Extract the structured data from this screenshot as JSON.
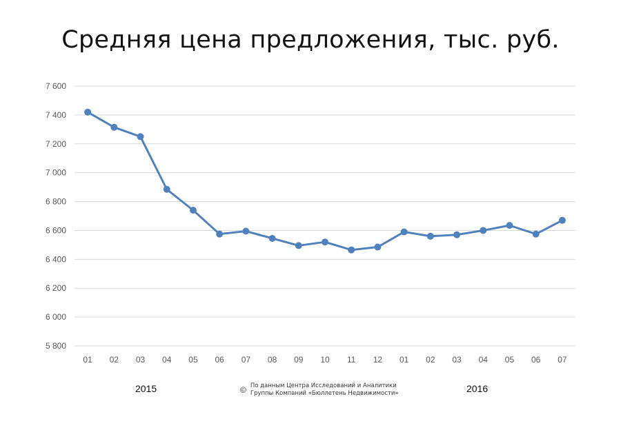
{
  "title": "Средняя цена предложения, тыс. руб.",
  "chart_data": {
    "type": "line",
    "title": "Средняя цена предложения, тыс. руб.",
    "categories": [
      "01",
      "02",
      "03",
      "04",
      "05",
      "06",
      "07",
      "08",
      "09",
      "10",
      "11",
      "12",
      "01",
      "02",
      "03",
      "04",
      "05",
      "06",
      "07"
    ],
    "values": [
      7420,
      7315,
      7250,
      6885,
      6740,
      6575,
      6595,
      6545,
      6495,
      6520,
      6465,
      6485,
      6590,
      6560,
      6570,
      6600,
      6635,
      6575,
      6670
    ],
    "ylim": [
      5800,
      7600
    ],
    "yticks": [
      "5 800",
      "6 000",
      "6 200",
      "6 400",
      "6 600",
      "6 800",
      "7 000",
      "7 200",
      "7 400",
      "7 600"
    ],
    "grid": true,
    "line_color": "#4f81bd",
    "gridline_color": "#d9d9d9"
  },
  "years": {
    "first": "2015",
    "second": "2016"
  },
  "credit": {
    "symbol": "©",
    "line1": "По данным Центра Исследований и Аналитики",
    "line2": "Группы Компаний «Бюллетень Недвижимости»"
  }
}
